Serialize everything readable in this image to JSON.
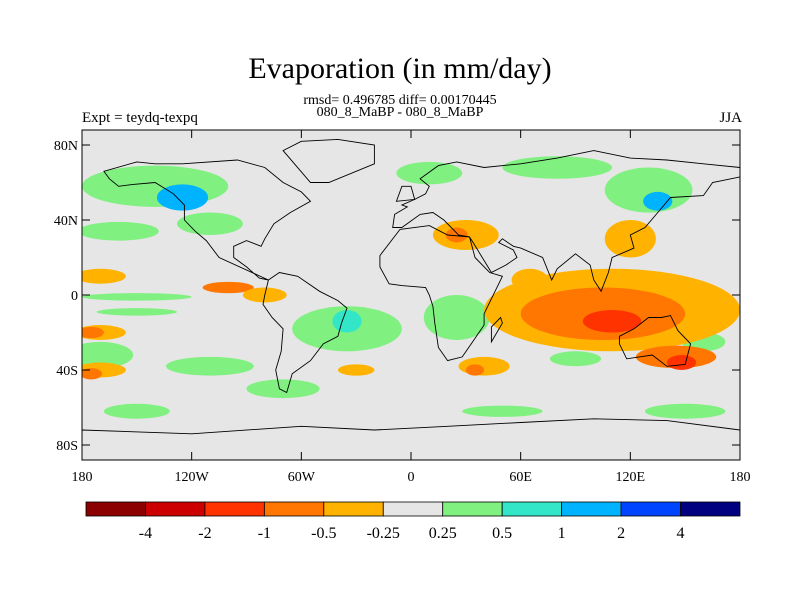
{
  "title": "Evaporation (in mm/day)",
  "stats_line": "rmsd= 0.496785 diff= 0.00170445",
  "case_line": "080_8_MaBP - 080_8_MaBP",
  "left_label": "Expt = teydq-texpq",
  "right_label": "JJA",
  "lat_ticks": [
    {
      "value": 80,
      "label": "80N"
    },
    {
      "value": 40,
      "label": "40N"
    },
    {
      "value": 0,
      "label": "0"
    },
    {
      "value": -40,
      "label": "40S"
    },
    {
      "value": -80,
      "label": "80S"
    }
  ],
  "lon_ticks": [
    {
      "value": -180,
      "label": "180"
    },
    {
      "value": -120,
      "label": "120W"
    },
    {
      "value": -60,
      "label": "60W"
    },
    {
      "value": 0,
      "label": "0"
    },
    {
      "value": 60,
      "label": "60E"
    },
    {
      "value": 120,
      "label": "120E"
    },
    {
      "value": 180,
      "label": "180"
    }
  ],
  "colorbar": {
    "colors": [
      "#8b0000",
      "#cc0000",
      "#ff3300",
      "#ff7700",
      "#ffb300",
      "#e6e6e6",
      "#80f080",
      "#33e6c8",
      "#00b3ff",
      "#0044ff",
      "#000080"
    ],
    "labels": [
      "-4",
      "-2",
      "-1",
      "-0.5",
      "-0.25",
      "0.25",
      "0.5",
      "1",
      "2",
      "4"
    ]
  },
  "fill_color": "#e6e6e6",
  "regions": [
    {
      "level": 6,
      "lon": -140,
      "lat": 58,
      "rlon": 40,
      "rlat": 11
    },
    {
      "level": 8,
      "lon": -125,
      "lat": 52,
      "rlon": 14,
      "rlat": 7
    },
    {
      "level": 6,
      "lon": -160,
      "lat": 34,
      "rlon": 22,
      "rlat": 5
    },
    {
      "level": 6,
      "lon": -110,
      "lat": 38,
      "rlon": 18,
      "rlat": 6
    },
    {
      "level": 6,
      "lon": -150,
      "lat": -1,
      "rlon": 30,
      "rlat": 2
    },
    {
      "level": 6,
      "lon": -150,
      "lat": -9,
      "rlon": 22,
      "rlat": 2
    },
    {
      "level": 6,
      "lon": -170,
      "lat": -32,
      "rlon": 18,
      "rlat": 7
    },
    {
      "level": 6,
      "lon": -110,
      "lat": -38,
      "rlon": 24,
      "rlat": 5
    },
    {
      "level": 6,
      "lon": -150,
      "lat": -62,
      "rlon": 18,
      "rlat": 4
    },
    {
      "level": 6,
      "lon": -70,
      "lat": -50,
      "rlon": 20,
      "rlat": 5
    },
    {
      "level": 6,
      "lon": -35,
      "lat": -18,
      "rlon": 30,
      "rlat": 12
    },
    {
      "level": 7,
      "lon": -35,
      "lat": -14,
      "rlon": 8,
      "rlat": 6
    },
    {
      "level": 6,
      "lon": 25,
      "lat": -12,
      "rlon": 18,
      "rlat": 12
    },
    {
      "level": 6,
      "lon": 10,
      "lat": 65,
      "rlon": 18,
      "rlat": 6
    },
    {
      "level": 6,
      "lon": 80,
      "lat": 68,
      "rlon": 30,
      "rlat": 6
    },
    {
      "level": 6,
      "lon": 130,
      "lat": 56,
      "rlon": 24,
      "rlat": 12
    },
    {
      "level": 8,
      "lon": 135,
      "lat": 50,
      "rlon": 8,
      "rlat": 5
    },
    {
      "level": 6,
      "lon": 90,
      "lat": -34,
      "rlon": 14,
      "rlat": 4
    },
    {
      "level": 6,
      "lon": 150,
      "lat": -62,
      "rlon": 22,
      "rlat": 4
    },
    {
      "level": 6,
      "lon": 50,
      "lat": -62,
      "rlon": 22,
      "rlat": 3
    },
    {
      "level": 6,
      "lon": 160,
      "lat": -25,
      "rlon": 12,
      "rlat": 5
    },
    {
      "level": 4,
      "lon": -170,
      "lat": 10,
      "rlon": 14,
      "rlat": 4
    },
    {
      "level": 4,
      "lon": -170,
      "lat": -20,
      "rlon": 14,
      "rlat": 4
    },
    {
      "level": 3,
      "lon": -175,
      "lat": -20,
      "rlon": 7,
      "rlat": 3
    },
    {
      "level": 4,
      "lon": -170,
      "lat": -40,
      "rlon": 14,
      "rlat": 4
    },
    {
      "level": 3,
      "lon": -175,
      "lat": -42,
      "rlon": 6,
      "rlat": 3
    },
    {
      "level": 3,
      "lon": -100,
      "lat": 4,
      "rlon": 14,
      "rlat": 3
    },
    {
      "level": 4,
      "lon": -80,
      "lat": 0,
      "rlon": 12,
      "rlat": 4
    },
    {
      "level": 4,
      "lon": 30,
      "lat": 32,
      "rlon": 18,
      "rlat": 8
    },
    {
      "level": 3,
      "lon": 25,
      "lat": 32,
      "rlon": 6,
      "rlat": 4
    },
    {
      "level": 4,
      "lon": 120,
      "lat": 30,
      "rlon": 14,
      "rlat": 10
    },
    {
      "level": 4,
      "lon": 110,
      "lat": -8,
      "rlon": 70,
      "rlat": 22
    },
    {
      "level": 3,
      "lon": 105,
      "lat": -10,
      "rlon": 45,
      "rlat": 14
    },
    {
      "level": 2,
      "lon": 110,
      "lat": -14,
      "rlon": 16,
      "rlat": 6
    },
    {
      "level": 3,
      "lon": 145,
      "lat": -33,
      "rlon": 22,
      "rlat": 6
    },
    {
      "level": 2,
      "lon": 148,
      "lat": -36,
      "rlon": 8,
      "rlat": 4
    },
    {
      "level": 4,
      "lon": 40,
      "lat": -38,
      "rlon": 14,
      "rlat": 5
    },
    {
      "level": 3,
      "lon": 35,
      "lat": -40,
      "rlon": 5,
      "rlat": 3
    },
    {
      "level": 4,
      "lon": -30,
      "lat": -40,
      "rlon": 10,
      "rlat": 3
    },
    {
      "level": 4,
      "lon": 65,
      "lat": 8,
      "rlon": 10,
      "rlat": 6
    }
  ],
  "coastlines": [
    [
      [
        -168,
        66
      ],
      [
        -150,
        71
      ],
      [
        -140,
        70
      ],
      [
        -125,
        70
      ],
      [
        -95,
        72
      ],
      [
        -80,
        68
      ],
      [
        -70,
        60
      ],
      [
        -60,
        55
      ],
      [
        -55,
        50
      ],
      [
        -66,
        44
      ],
      [
        -75,
        38
      ],
      [
        -80,
        30
      ],
      [
        -82,
        26
      ],
      [
        -90,
        29
      ],
      [
        -97,
        26
      ],
      [
        -97,
        20
      ],
      [
        -90,
        15
      ],
      [
        -83,
        9
      ],
      [
        -78,
        8
      ],
      [
        -105,
        20
      ],
      [
        -112,
        29
      ],
      [
        -118,
        34
      ],
      [
        -124,
        40
      ],
      [
        -124,
        48
      ],
      [
        -130,
        54
      ],
      [
        -140,
        60
      ],
      [
        -152,
        59
      ],
      [
        -160,
        58
      ],
      [
        -165,
        62
      ],
      [
        -168,
        66
      ]
    ],
    [
      [
        -78,
        8
      ],
      [
        -72,
        12
      ],
      [
        -62,
        10
      ],
      [
        -50,
        2
      ],
      [
        -40,
        -3
      ],
      [
        -35,
        -7
      ],
      [
        -38,
        -15
      ],
      [
        -40,
        -22
      ],
      [
        -48,
        -26
      ],
      [
        -55,
        -35
      ],
      [
        -65,
        -42
      ],
      [
        -68,
        -52
      ],
      [
        -72,
        -50
      ],
      [
        -74,
        -40
      ],
      [
        -71,
        -30
      ],
      [
        -70,
        -18
      ],
      [
        -76,
        -12
      ],
      [
        -81,
        -5
      ],
      [
        -80,
        0
      ],
      [
        -78,
        8
      ]
    ],
    [
      [
        -10,
        36
      ],
      [
        -9,
        43
      ],
      [
        -2,
        47
      ],
      [
        -5,
        48
      ],
      [
        2,
        51
      ],
      [
        8,
        54
      ],
      [
        10,
        58
      ],
      [
        5,
        62
      ],
      [
        15,
        69
      ],
      [
        25,
        71
      ],
      [
        40,
        68
      ],
      [
        60,
        70
      ],
      [
        80,
        73
      ],
      [
        100,
        77
      ],
      [
        120,
        73
      ],
      [
        140,
        72
      ],
      [
        160,
        70
      ],
      [
        180,
        68
      ],
      [
        180,
        63
      ],
      [
        165,
        60
      ],
      [
        160,
        53
      ],
      [
        142,
        52
      ],
      [
        135,
        44
      ],
      [
        128,
        36
      ],
      [
        120,
        32
      ],
      [
        122,
        25
      ],
      [
        110,
        20
      ],
      [
        108,
        12
      ],
      [
        104,
        2
      ],
      [
        100,
        8
      ],
      [
        98,
        16
      ],
      [
        90,
        22
      ],
      [
        80,
        14
      ],
      [
        77,
        8
      ],
      [
        72,
        20
      ],
      [
        60,
        25
      ],
      [
        56,
        26
      ],
      [
        50,
        30
      ],
      [
        48,
        28
      ],
      [
        56,
        24
      ],
      [
        58,
        20
      ],
      [
        52,
        16
      ],
      [
        44,
        12
      ],
      [
        34,
        28
      ],
      [
        32,
        31
      ],
      [
        26,
        32
      ],
      [
        18,
        40
      ],
      [
        12,
        44
      ],
      [
        5,
        43
      ],
      [
        -5,
        36
      ],
      [
        -10,
        36
      ]
    ],
    [
      [
        -17,
        21
      ],
      [
        -17,
        15
      ],
      [
        -12,
        6
      ],
      [
        -5,
        5
      ],
      [
        8,
        4
      ],
      [
        10,
        0
      ],
      [
        12,
        -6
      ],
      [
        13,
        -15
      ],
      [
        15,
        -28
      ],
      [
        20,
        -35
      ],
      [
        28,
        -33
      ],
      [
        33,
        -26
      ],
      [
        40,
        -16
      ],
      [
        40,
        -10
      ],
      [
        44,
        -2
      ],
      [
        50,
        10
      ],
      [
        43,
        12
      ],
      [
        35,
        20
      ],
      [
        32,
        31
      ],
      [
        20,
        32
      ],
      [
        10,
        37
      ],
      [
        -6,
        35
      ],
      [
        -17,
        21
      ]
    ],
    [
      [
        114,
        -22
      ],
      [
        122,
        -18
      ],
      [
        130,
        -12
      ],
      [
        137,
        -12
      ],
      [
        142,
        -11
      ],
      [
        146,
        -19
      ],
      [
        153,
        -26
      ],
      [
        150,
        -37
      ],
      [
        140,
        -38
      ],
      [
        132,
        -32
      ],
      [
        118,
        -34
      ],
      [
        114,
        -26
      ],
      [
        114,
        -22
      ]
    ],
    [
      [
        -55,
        60
      ],
      [
        -45,
        60
      ],
      [
        -20,
        70
      ],
      [
        -20,
        80
      ],
      [
        -40,
        83
      ],
      [
        -60,
        82
      ],
      [
        -70,
        77
      ],
      [
        -55,
        60
      ]
    ],
    [
      [
        -180,
        -72
      ],
      [
        -120,
        -74
      ],
      [
        -60,
        -70
      ],
      [
        -20,
        -72
      ],
      [
        20,
        -70
      ],
      [
        60,
        -68
      ],
      [
        100,
        -66
      ],
      [
        140,
        -67
      ],
      [
        180,
        -72
      ],
      [
        180,
        -90
      ],
      [
        -180,
        -90
      ],
      [
        -180,
        -72
      ]
    ],
    [
      [
        44,
        -25
      ],
      [
        50,
        -15
      ],
      [
        49,
        -12
      ],
      [
        44,
        -17
      ],
      [
        44,
        -25
      ]
    ],
    [
      [
        -8,
        50
      ],
      [
        2,
        51
      ],
      [
        0,
        58
      ],
      [
        -5,
        58
      ],
      [
        -8,
        50
      ]
    ]
  ]
}
